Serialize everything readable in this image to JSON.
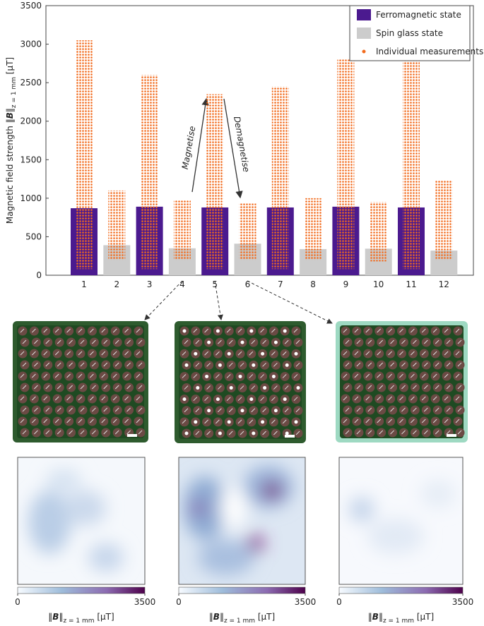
{
  "chart_data": {
    "type": "bar",
    "ylabel": {
      "main": "Magnetic field strength ‖",
      "bold": "B",
      "close": "‖",
      "sub": "z = 1 mm",
      "unit": " [µT]"
    },
    "categories": [
      "1",
      "2",
      "3",
      "4",
      "5",
      "6",
      "7",
      "8",
      "9",
      "10",
      "11",
      "12"
    ],
    "series": [
      {
        "name": "Ferromagnetic state",
        "color": "#4b1a8f",
        "values": [
          870,
          null,
          890,
          null,
          880,
          null,
          880,
          null,
          890,
          null,
          880,
          null
        ]
      },
      {
        "name": "Spin glass state",
        "color": "#cccccc",
        "values": [
          null,
          390,
          null,
          350,
          null,
          410,
          null,
          340,
          null,
          345,
          null,
          320
        ]
      }
    ],
    "measurements": {
      "name": "Individual measurements",
      "color": "#f26b1d",
      "min": [
        80,
        200,
        80,
        200,
        80,
        200,
        80,
        200,
        80,
        180,
        80,
        200
      ],
      "max": [
        3050,
        1100,
        2600,
        980,
        2350,
        930,
        2450,
        1000,
        2800,
        950,
        2780,
        1230
      ]
    },
    "ylim": [
      0,
      3500
    ],
    "yticks": [
      0,
      500,
      1000,
      1500,
      2000,
      2500,
      3000,
      3500
    ],
    "annotations": [
      "Magnetise",
      "Demagnetise"
    ],
    "colorbar": {
      "lim": [
        0,
        3500
      ],
      "ticks": [
        0,
        3500
      ],
      "label": {
        "open": "‖",
        "bold": "B",
        "close": "‖",
        "sub": "z = 1 mm",
        "unit": " [µT]"
      }
    }
  }
}
